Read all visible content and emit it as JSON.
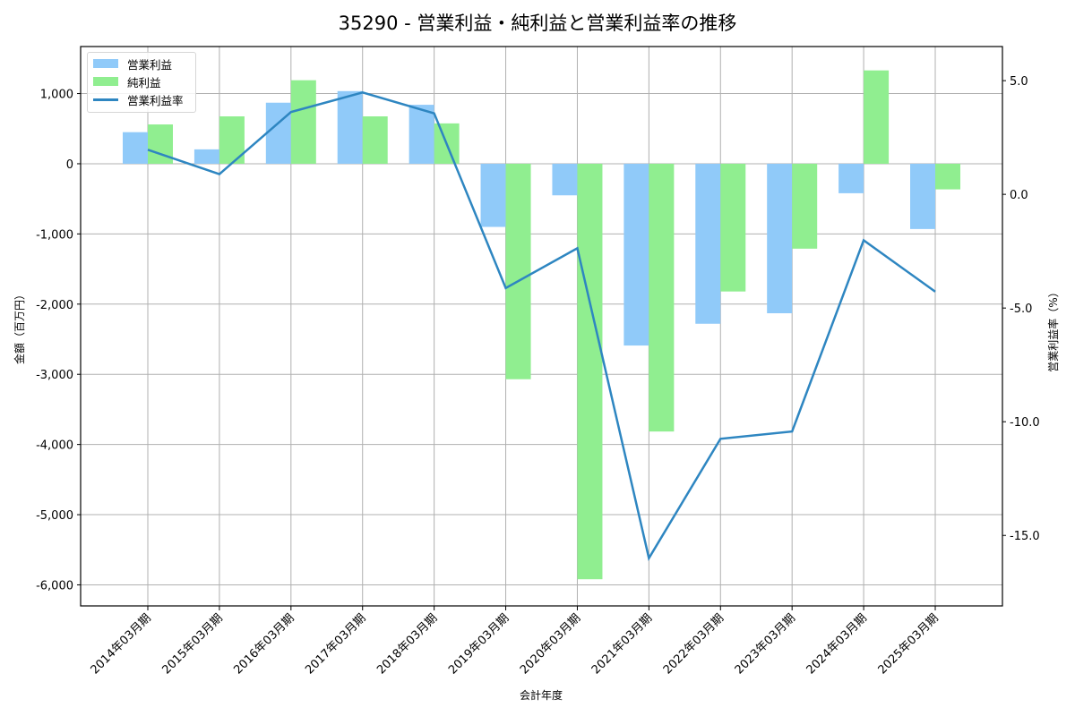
{
  "title": "35290 - 営業利益・純利益と営業利益率の推移",
  "legend": {
    "items": [
      {
        "label": "営業利益",
        "type": "bar",
        "color": "#90caf9"
      },
      {
        "label": "純利益",
        "type": "bar",
        "color": "#90ee90"
      },
      {
        "label": "営業利益率",
        "type": "line",
        "color": "#2e86c1"
      }
    ]
  },
  "axes": {
    "xlabel": "会計年度",
    "ylabel_left": "金額（百万円）",
    "ylabel_right": "営業利益率（%）",
    "left_ticks": [
      {
        "value": 1000,
        "label": "1,000"
      },
      {
        "value": 0,
        "label": "0"
      },
      {
        "value": -1000,
        "label": "-1,000"
      },
      {
        "value": -2000,
        "label": "-2,000"
      },
      {
        "value": -3000,
        "label": "-3,000"
      },
      {
        "value": -4000,
        "label": "-4,000"
      },
      {
        "value": -5000,
        "label": "-5,000"
      },
      {
        "value": -6000,
        "label": "-6,000"
      }
    ],
    "right_ticks": [
      {
        "value": 5.0,
        "label": "5.0"
      },
      {
        "value": 0.0,
        "label": "0.0"
      },
      {
        "value": -5.0,
        "label": "-5.0"
      },
      {
        "value": -10.0,
        "label": "-10.0"
      },
      {
        "value": -15.0,
        "label": "-15.0"
      }
    ]
  },
  "chart_data": {
    "type": "bar",
    "title": "35290 - 営業利益・純利益と営業利益率の推移",
    "xlabel": "会計年度",
    "ylabel": "金額（百万円）",
    "ylabel_right": "営業利益率（%）",
    "categories": [
      "2014年03月期",
      "2015年03月期",
      "2016年03月期",
      "2017年03月期",
      "2018年03月期",
      "2019年03月期",
      "2020年03月期",
      "2021年03月期",
      "2022年03月期",
      "2023年03月期",
      "2024年03月期",
      "2025年03月期"
    ],
    "series": [
      {
        "name": "営業利益",
        "type": "bar",
        "axis": "left",
        "color": "#90caf9",
        "values": [
          450,
          205,
          870,
          1035,
          840,
          -900,
          -450,
          -2590,
          -2280,
          -2130,
          -420,
          -930
        ]
      },
      {
        "name": "純利益",
        "type": "bar",
        "axis": "left",
        "color": "#90ee90",
        "values": [
          560,
          675,
          1190,
          675,
          575,
          -3070,
          -5920,
          -3815,
          -1820,
          -1210,
          1330,
          -365
        ]
      },
      {
        "name": "営業利益率",
        "type": "line",
        "axis": "right",
        "color": "#2e86c1",
        "values": [
          1.96,
          0.89,
          3.62,
          4.48,
          3.56,
          -4.12,
          -2.37,
          -16.0,
          -10.75,
          -10.43,
          -2.02,
          -4.28
        ]
      }
    ],
    "ylim": [
      -6300,
      1670
    ],
    "ylim_right": [
      -18.1,
      6.5
    ],
    "grid": true,
    "legend_position": "upper left"
  }
}
